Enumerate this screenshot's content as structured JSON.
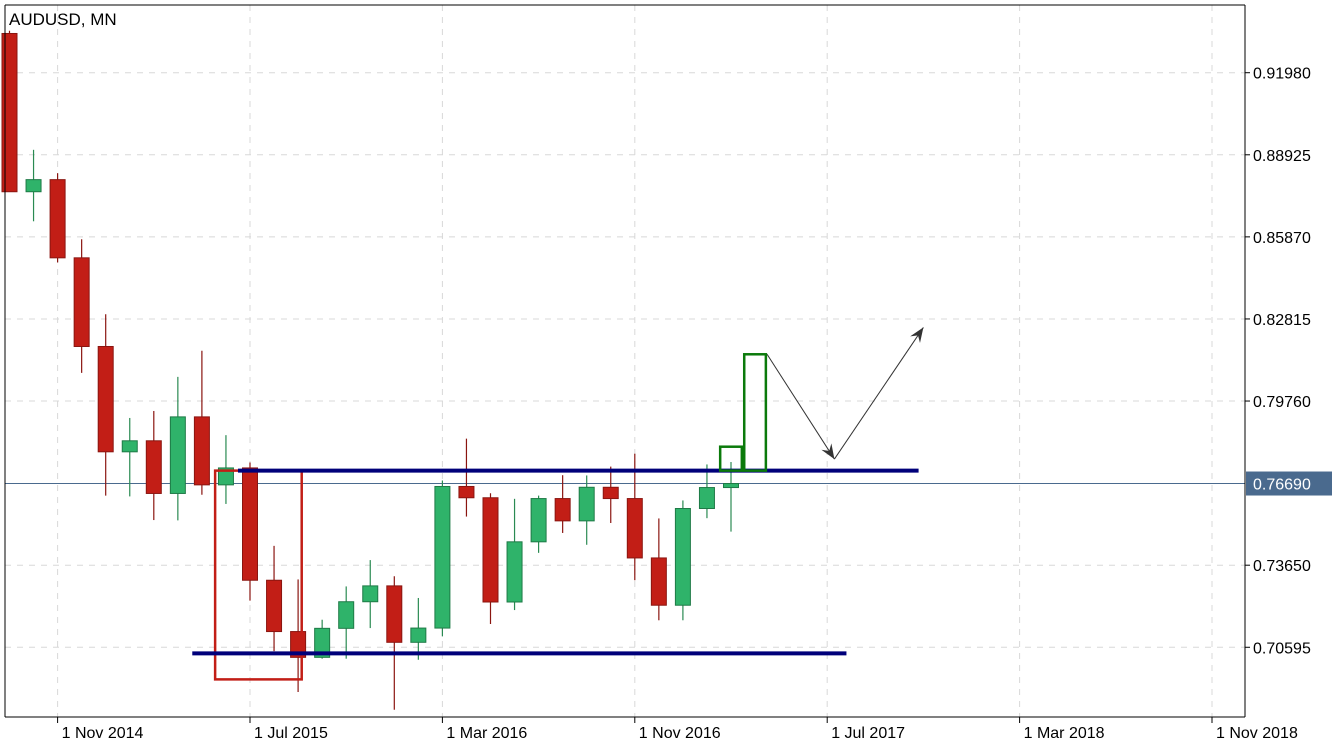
{
  "chart_data": {
    "type": "candlestick",
    "title": "AUDUSD, MN",
    "y_ticks": [
      0.9198,
      0.88925,
      0.8587,
      0.82815,
      0.7976,
      0.7365,
      0.70595
    ],
    "y_tick_labels": [
      "0.91980",
      "0.88925",
      "0.85870",
      "0.82815",
      "0.79760",
      "0.73650",
      "0.70595"
    ],
    "ylim": [
      0.68,
      0.945
    ],
    "x_ticks": [
      {
        "label": "1 Nov 2014",
        "index": 2
      },
      {
        "label": "1 Jul 2015",
        "index": 10
      },
      {
        "label": "1 Mar 2016",
        "index": 18
      },
      {
        "label": "1 Nov 2016",
        "index": 26
      },
      {
        "label": "1 Jul 2017",
        "index": 34
      },
      {
        "label": "1 Mar 2018",
        "index": 42
      },
      {
        "label": "1 Nov 2018",
        "index": 50
      }
    ],
    "current_price": 0.7669,
    "current_price_label": "0.76690",
    "grid": true,
    "candles": [
      {
        "date": "2014-09",
        "open": 0.9344,
        "high": 0.9354,
        "low": 0.8755,
        "close": 0.8755
      },
      {
        "date": "2014-10",
        "open": 0.8755,
        "high": 0.8911,
        "low": 0.8645,
        "close": 0.88
      },
      {
        "date": "2014-11",
        "open": 0.88,
        "high": 0.8824,
        "low": 0.8492,
        "close": 0.8509
      },
      {
        "date": "2014-12",
        "open": 0.8509,
        "high": 0.8578,
        "low": 0.8081,
        "close": 0.8179
      },
      {
        "date": "2015-01",
        "open": 0.8179,
        "high": 0.8299,
        "low": 0.7624,
        "close": 0.7787
      },
      {
        "date": "2015-02",
        "open": 0.7787,
        "high": 0.7913,
        "low": 0.7621,
        "close": 0.7828
      },
      {
        "date": "2015-03",
        "open": 0.7828,
        "high": 0.7939,
        "low": 0.7533,
        "close": 0.7632
      },
      {
        "date": "2015-04",
        "open": 0.7632,
        "high": 0.8066,
        "low": 0.7532,
        "close": 0.7917
      },
      {
        "date": "2015-05",
        "open": 0.7917,
        "high": 0.8163,
        "low": 0.7627,
        "close": 0.7664
      },
      {
        "date": "2015-06",
        "open": 0.7664,
        "high": 0.7849,
        "low": 0.7593,
        "close": 0.7727
      },
      {
        "date": "2015-07",
        "open": 0.7727,
        "high": 0.7747,
        "low": 0.7233,
        "close": 0.7309
      },
      {
        "date": "2015-08",
        "open": 0.7309,
        "high": 0.7437,
        "low": 0.7045,
        "close": 0.7118
      },
      {
        "date": "2015-09",
        "open": 0.7118,
        "high": 0.7312,
        "low": 0.6893,
        "close": 0.7022
      },
      {
        "date": "2015-10",
        "open": 0.7022,
        "high": 0.7162,
        "low": 0.7017,
        "close": 0.713
      },
      {
        "date": "2015-11",
        "open": 0.713,
        "high": 0.7286,
        "low": 0.7017,
        "close": 0.7229
      },
      {
        "date": "2015-12",
        "open": 0.7229,
        "high": 0.7384,
        "low": 0.7131,
        "close": 0.7288
      },
      {
        "date": "2016-01",
        "open": 0.7288,
        "high": 0.7324,
        "low": 0.6827,
        "close": 0.7078
      },
      {
        "date": "2016-02",
        "open": 0.7078,
        "high": 0.7243,
        "low": 0.7013,
        "close": 0.7131
      },
      {
        "date": "2016-03",
        "open": 0.7131,
        "high": 0.768,
        "low": 0.71,
        "close": 0.7658
      },
      {
        "date": "2016-04",
        "open": 0.7658,
        "high": 0.7836,
        "low": 0.7546,
        "close": 0.7616
      },
      {
        "date": "2016-05",
        "open": 0.7616,
        "high": 0.7633,
        "low": 0.7146,
        "close": 0.7228
      },
      {
        "date": "2016-06",
        "open": 0.7228,
        "high": 0.7612,
        "low": 0.7198,
        "close": 0.7452
      },
      {
        "date": "2016-07",
        "open": 0.7452,
        "high": 0.7624,
        "low": 0.7411,
        "close": 0.7613
      },
      {
        "date": "2016-08",
        "open": 0.7613,
        "high": 0.77,
        "low": 0.7485,
        "close": 0.753
      },
      {
        "date": "2016-09",
        "open": 0.753,
        "high": 0.7699,
        "low": 0.7441,
        "close": 0.7655
      },
      {
        "date": "2016-10",
        "open": 0.7655,
        "high": 0.7732,
        "low": 0.7522,
        "close": 0.7613
      },
      {
        "date": "2016-11",
        "open": 0.7613,
        "high": 0.778,
        "low": 0.7309,
        "close": 0.7392
      },
      {
        "date": "2016-12",
        "open": 0.7392,
        "high": 0.7539,
        "low": 0.716,
        "close": 0.7216
      },
      {
        "date": "2017-01",
        "open": 0.7216,
        "high": 0.7606,
        "low": 0.716,
        "close": 0.7576
      },
      {
        "date": "2017-02",
        "open": 0.7576,
        "high": 0.774,
        "low": 0.754,
        "close": 0.7654
      },
      {
        "date": "2017-03",
        "open": 0.7654,
        "high": 0.7749,
        "low": 0.749,
        "close": 0.7669
      }
    ],
    "horizontal_lines": [
      {
        "y": 0.7717,
        "from_index": 9.5,
        "to_index": 37.8,
        "color": "#00007a"
      },
      {
        "y": 0.7037,
        "from_index": 7.6,
        "to_index": 34.8,
        "color": "#00007a"
      }
    ],
    "highlight_box": {
      "from_index": 8.55,
      "to_index": 12.15,
      "top": 0.7717,
      "bottom": 0.694,
      "color": "#c21e16"
    },
    "projected_candles": [
      {
        "from_index": 29.55,
        "to_index": 30.45,
        "open": 0.7717,
        "close": 0.7806,
        "color": "#0b7a0b"
      },
      {
        "from_index": 30.55,
        "to_index": 31.45,
        "open": 0.7717,
        "close": 0.815,
        "color": "#0b7a0b"
      }
    ],
    "projection_path": [
      {
        "index": 31.5,
        "value": 0.815
      },
      {
        "index": 34.3,
        "value": 0.776
      },
      {
        "index": 38.0,
        "value": 0.825
      }
    ],
    "colors": {
      "bull": "#2fb36a",
      "bear": "#c21e16",
      "wick": "#000000",
      "grid": "#d8d8d8",
      "price_line": "#4a6a8e",
      "price_tag": "#4a6a8e",
      "level": "#00007a",
      "projection_arrow": "#333333"
    }
  }
}
